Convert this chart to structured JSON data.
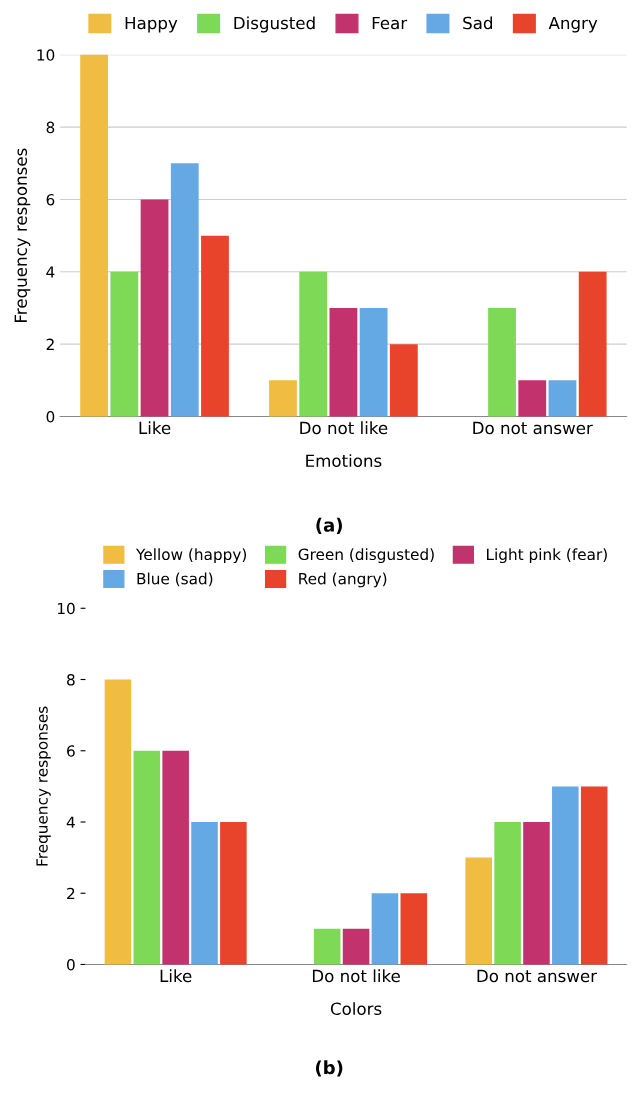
{
  "chart_data": [
    {
      "type": "bar",
      "xlabel": "Emotions",
      "ylabel": "Frequency responses",
      "categories": [
        "Like",
        "Do not like",
        "Do not answer"
      ],
      "ylim": [
        0,
        10
      ],
      "yticks": [
        0,
        2,
        4,
        6,
        8,
        10
      ],
      "grid": "y",
      "legend": "top",
      "annotations": [
        "(a)"
      ],
      "series": [
        {
          "name": "Happy",
          "color": "#f0bc42",
          "values": [
            10,
            1,
            0
          ]
        },
        {
          "name": "Disgusted",
          "color": "#7ed957",
          "values": [
            4,
            4,
            3
          ]
        },
        {
          "name": "Fear",
          "color": "#c2336e",
          "values": [
            6,
            3,
            1
          ]
        },
        {
          "name": "Sad",
          "color": "#64a8e4",
          "values": [
            7,
            3,
            1
          ]
        },
        {
          "name": "Angry",
          "color": "#e8432b",
          "values": [
            5,
            2,
            4
          ]
        }
      ]
    },
    {
      "type": "bar",
      "xlabel": "Colors",
      "ylabel": "Frequency responses",
      "categories": [
        "Like",
        "Do not like",
        "Do not answer"
      ],
      "ylim": [
        0,
        10
      ],
      "yticks": [
        0,
        2,
        4,
        6,
        8,
        10
      ],
      "legend": "top",
      "annotations": [
        "(b)"
      ],
      "series": [
        {
          "name": "Yellow (happy)",
          "color": "#f0bc42",
          "values": [
            8,
            0,
            3
          ]
        },
        {
          "name": "Green (disgusted)",
          "color": "#7ed957",
          "values": [
            6,
            1,
            4
          ]
        },
        {
          "name": "Light pink (fear)",
          "color": "#c2336e",
          "values": [
            6,
            1,
            4
          ]
        },
        {
          "name": "Blue (sad)",
          "color": "#64a8e4",
          "values": [
            4,
            2,
            5
          ]
        },
        {
          "name": "Red (angry)",
          "color": "#e8432b",
          "values": [
            4,
            2,
            5
          ]
        }
      ]
    }
  ]
}
